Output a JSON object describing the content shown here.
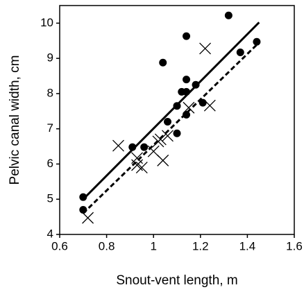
{
  "chart_data": {
    "type": "scatter",
    "x_label": "Snout-vent length, m",
    "y_label": "Pelvic canal width, cm",
    "xlim": [
      0.6,
      1.6
    ],
    "ylim": [
      4,
      10.5
    ],
    "xticks": [
      0.6,
      0.8,
      1,
      1.2,
      1.4,
      1.6
    ],
    "yticks": [
      4,
      5,
      6,
      7,
      8,
      9,
      10
    ],
    "series": [
      {
        "marker": "circle",
        "color": "#000000",
        "x": [
          0.7,
          0.7,
          0.91,
          0.96,
          1.04,
          1.06,
          1.1,
          1.1,
          1.12,
          1.14,
          1.14,
          1.14,
          1.14,
          1.18,
          1.21,
          1.32,
          1.37,
          1.44
        ],
        "y": [
          5.06,
          4.7,
          6.48,
          6.48,
          8.88,
          7.2,
          7.65,
          6.87,
          8.05,
          8.05,
          9.63,
          8.4,
          7.4,
          8.25,
          7.74,
          10.22,
          9.17,
          9.47
        ]
      },
      {
        "marker": "cross",
        "color": "#000000",
        "x": [
          0.72,
          0.85,
          0.93,
          0.95,
          0.93,
          1.0,
          1.02,
          1.03,
          1.04,
          1.06,
          1.15,
          1.22,
          1.24
        ],
        "y": [
          4.47,
          6.52,
          5.97,
          5.9,
          6.17,
          6.36,
          6.64,
          6.7,
          6.1,
          6.8,
          7.6,
          9.28,
          7.66
        ]
      }
    ],
    "lines": [
      {
        "style": "solid",
        "color": "#000000",
        "x": [
          0.7,
          1.45
        ],
        "y": [
          5.0,
          10.02
        ]
      },
      {
        "style": "dashed",
        "color": "#000000",
        "x": [
          0.7,
          1.45
        ],
        "y": [
          4.6,
          9.45
        ]
      }
    ]
  }
}
